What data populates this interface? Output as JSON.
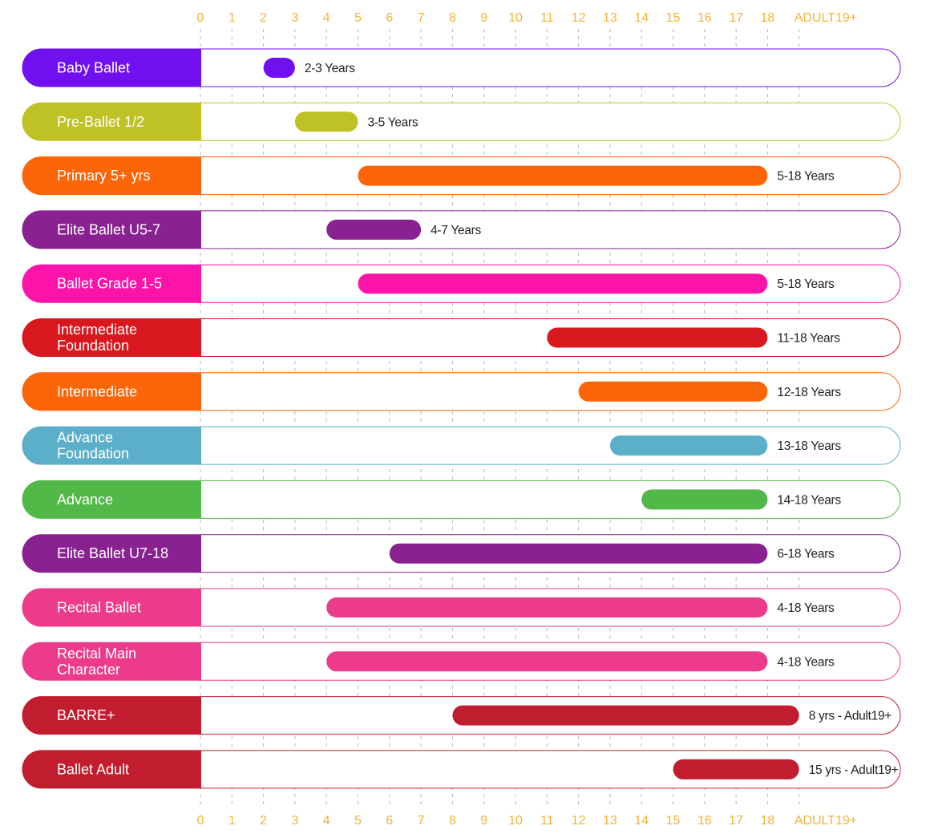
{
  "chart_data": {
    "type": "bar",
    "orientation": "horizontal",
    "title": "",
    "xlabel": "",
    "ylabel": "",
    "xlim": [
      0,
      19
    ],
    "x_ticks": [
      "0",
      "1",
      "2",
      "3",
      "4",
      "5",
      "6",
      "7",
      "8",
      "9",
      "10",
      "11",
      "12",
      "13",
      "14",
      "15",
      "16",
      "17",
      "18",
      "ADULT19+"
    ],
    "grid": true,
    "series": [
      {
        "name": "Baby Ballet",
        "label_lines": [
          "Baby Ballet"
        ],
        "start": 2,
        "end": 3,
        "range_label": "2-3 Years",
        "color": "#7010f0"
      },
      {
        "name": "Pre-Ballet 1/2",
        "label_lines": [
          "Pre-Ballet 1/2"
        ],
        "start": 3,
        "end": 5,
        "range_label": "3-5 Years",
        "color": "#bec224"
      },
      {
        "name": "Primary 5+ yrs",
        "label_lines": [
          "Primary 5+ yrs"
        ],
        "start": 5,
        "end": 18,
        "range_label": "5-18 Years",
        "color": "#fc6508"
      },
      {
        "name": "Elite Ballet U5-7",
        "label_lines": [
          "Elite Ballet U5-7"
        ],
        "start": 4,
        "end": 7,
        "range_label": "4-7 Years",
        "color": "#8a2191"
      },
      {
        "name": "Ballet Grade 1-5",
        "label_lines": [
          "Ballet Grade 1-5"
        ],
        "start": 5,
        "end": 18,
        "range_label": "5-18 Years",
        "color": "#fc14aa"
      },
      {
        "name": "Intermediate Foundation",
        "label_lines": [
          "Intermediate",
          "Foundation"
        ],
        "start": 11,
        "end": 18,
        "range_label": "11-18 Years",
        "color": "#d8181e"
      },
      {
        "name": "Intermediate",
        "label_lines": [
          "Intermediate"
        ],
        "start": 12,
        "end": 18,
        "range_label": "12-18 Years",
        "color": "#fc6508"
      },
      {
        "name": "Advance Foundation",
        "label_lines": [
          "Advance",
          "Foundation"
        ],
        "start": 13,
        "end": 18,
        "range_label": "13-18 Years",
        "color": "#5cafc8"
      },
      {
        "name": "Advance",
        "label_lines": [
          "Advance"
        ],
        "start": 14,
        "end": 18,
        "range_label": "14-18 Years",
        "color": "#52b848"
      },
      {
        "name": "Elite Ballet U7-18",
        "label_lines": [
          "Elite Ballet U7-18"
        ],
        "start": 6,
        "end": 18,
        "range_label": "6-18 Years",
        "color": "#8a2191"
      },
      {
        "name": "Recital Ballet",
        "label_lines": [
          "Recital Ballet"
        ],
        "start": 4,
        "end": 18,
        "range_label": "4-18 Years",
        "color": "#ec3b8a"
      },
      {
        "name": "Recital Main Character",
        "label_lines": [
          "Recital Main",
          "Character"
        ],
        "start": 4,
        "end": 18,
        "range_label": "4-18 Years",
        "color": "#ec3b8a"
      },
      {
        "name": "BARRE+",
        "label_lines": [
          "BARRE+"
        ],
        "start": 8,
        "end": 19,
        "range_label": "8 yrs - Adult19+",
        "color": "#c11d2e"
      },
      {
        "name": "Ballet Adult",
        "label_lines": [
          "Ballet Adult"
        ],
        "start": 15,
        "end": 19,
        "range_label": "15 yrs - Adult19+",
        "color": "#c11d2e"
      }
    ]
  },
  "colors": {
    "axis": "#f5b335",
    "grid": "#b8b8b8",
    "text": "#222222"
  }
}
